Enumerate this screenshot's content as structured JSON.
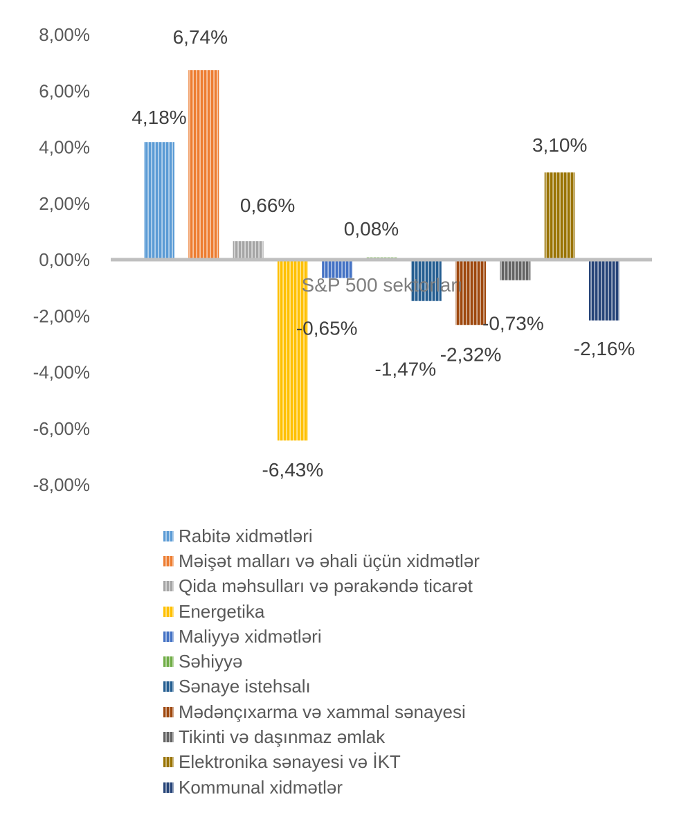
{
  "chart_data": {
    "type": "bar",
    "xlabel": "S&P 500 sektorları",
    "ylim": [
      -8,
      8
    ],
    "y_ticks": [
      "8,00%",
      "6,00%",
      "4,00%",
      "2,00%",
      "0,00%",
      "-2,00%",
      "-4,00%",
      "-6,00%",
      "-8,00%"
    ],
    "grid": false,
    "legend_position": "bottom",
    "series": [
      {
        "name": "Rabitə xidmətləri",
        "value": 4.18,
        "label": "4,18%",
        "color": "#5b9bd5"
      },
      {
        "name": "Məişət malları və əhali üçün xidmətlər",
        "value": 6.74,
        "label": "6,74%",
        "color": "#ed7d31"
      },
      {
        "name": "Qida məhsulları və pərakəndə ticarət",
        "value": 0.66,
        "label": "0,66%",
        "color": "#a5a5a5"
      },
      {
        "name": "Energetika",
        "value": -6.43,
        "label": "-6,43%",
        "color": "#ffc000"
      },
      {
        "name": "Maliyyə xidmətləri",
        "value": -0.65,
        "label": "-0,65%",
        "color": "#4472c4"
      },
      {
        "name": "Səhiyyə",
        "value": 0.08,
        "label": "0,08%",
        "color": "#70ad47"
      },
      {
        "name": "Sənaye istehsalı",
        "value": -1.47,
        "label": "-1,47%",
        "color": "#255e91"
      },
      {
        "name": "Mədənçıxarma və xammal sənayesi",
        "value": -2.32,
        "label": "-2,32%",
        "color": "#9e480e"
      },
      {
        "name": "Tikinti və daşınmaz əmlak",
        "value": -0.73,
        "label": "-0,73%",
        "color": "#636363"
      },
      {
        "name": "Elektronika sənayesi və İKT",
        "value": 3.1,
        "label": "3,10%",
        "color": "#997300"
      },
      {
        "name": "Kommunal xidmətlər",
        "value": -2.16,
        "label": "-2,16%",
        "color": "#264478"
      }
    ]
  }
}
